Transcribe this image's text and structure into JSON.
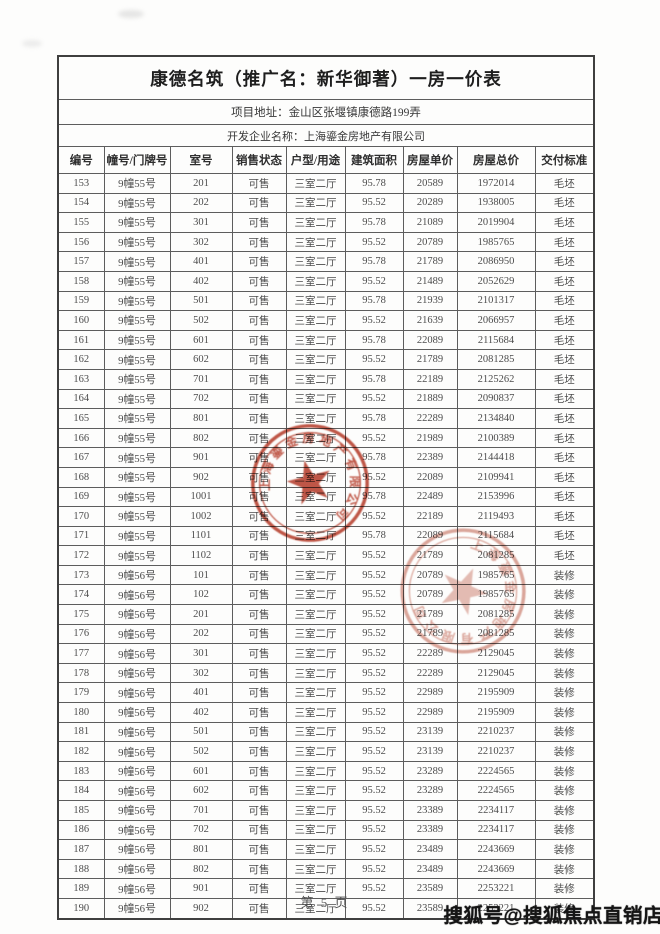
{
  "page": {
    "title": "康德名筑（推广名：新华御著）一房一价表",
    "address_line": "项目地址：金山区张堰镇康德路199弄",
    "developer_line": "开发企业名称：上海鎏金房地产有限公司",
    "page_footer": "第 5 页",
    "watermark": "搜狐号@搜狐焦点直销店"
  },
  "table": {
    "headers": [
      "编号",
      "幢号/门牌号",
      "室号",
      "销售状态",
      "户型/用途",
      "建筑面积",
      "房屋单价",
      "房屋总价",
      "交付标准"
    ],
    "rows": [
      [
        "153",
        "9幢55号",
        "201",
        "可售",
        "三室二厅",
        "95.78",
        "20589",
        "1972014",
        "毛坯"
      ],
      [
        "154",
        "9幢55号",
        "202",
        "可售",
        "三室二厅",
        "95.52",
        "20289",
        "1938005",
        "毛坯"
      ],
      [
        "155",
        "9幢55号",
        "301",
        "可售",
        "三室二厅",
        "95.78",
        "21089",
        "2019904",
        "毛坯"
      ],
      [
        "156",
        "9幢55号",
        "302",
        "可售",
        "三室二厅",
        "95.52",
        "20789",
        "1985765",
        "毛坯"
      ],
      [
        "157",
        "9幢55号",
        "401",
        "可售",
        "三室二厅",
        "95.78",
        "21789",
        "2086950",
        "毛坯"
      ],
      [
        "158",
        "9幢55号",
        "402",
        "可售",
        "三室二厅",
        "95.52",
        "21489",
        "2052629",
        "毛坯"
      ],
      [
        "159",
        "9幢55号",
        "501",
        "可售",
        "三室二厅",
        "95.78",
        "21939",
        "2101317",
        "毛坯"
      ],
      [
        "160",
        "9幢55号",
        "502",
        "可售",
        "三室二厅",
        "95.52",
        "21639",
        "2066957",
        "毛坯"
      ],
      [
        "161",
        "9幢55号",
        "601",
        "可售",
        "三室二厅",
        "95.78",
        "22089",
        "2115684",
        "毛坯"
      ],
      [
        "162",
        "9幢55号",
        "602",
        "可售",
        "三室二厅",
        "95.52",
        "21789",
        "2081285",
        "毛坯"
      ],
      [
        "163",
        "9幢55号",
        "701",
        "可售",
        "三室二厅",
        "95.78",
        "22189",
        "2125262",
        "毛坯"
      ],
      [
        "164",
        "9幢55号",
        "702",
        "可售",
        "三室二厅",
        "95.52",
        "21889",
        "2090837",
        "毛坯"
      ],
      [
        "165",
        "9幢55号",
        "801",
        "可售",
        "三室二厅",
        "95.78",
        "22289",
        "2134840",
        "毛坯"
      ],
      [
        "166",
        "9幢55号",
        "802",
        "可售",
        "三室二厅",
        "95.52",
        "21989",
        "2100389",
        "毛坯"
      ],
      [
        "167",
        "9幢55号",
        "901",
        "可售",
        "三室二厅",
        "95.78",
        "22389",
        "2144418",
        "毛坯"
      ],
      [
        "168",
        "9幢55号",
        "902",
        "可售",
        "三室二厅",
        "95.52",
        "22089",
        "2109941",
        "毛坯"
      ],
      [
        "169",
        "9幢55号",
        "1001",
        "可售",
        "三室二厅",
        "95.78",
        "22489",
        "2153996",
        "毛坯"
      ],
      [
        "170",
        "9幢55号",
        "1002",
        "可售",
        "三室二厅",
        "95.52",
        "22189",
        "2119493",
        "毛坯"
      ],
      [
        "171",
        "9幢55号",
        "1101",
        "可售",
        "三室二厅",
        "95.78",
        "22089",
        "2115684",
        "毛坯"
      ],
      [
        "172",
        "9幢55号",
        "1102",
        "可售",
        "三室二厅",
        "95.52",
        "21789",
        "2081285",
        "毛坯"
      ],
      [
        "173",
        "9幢56号",
        "101",
        "可售",
        "三室二厅",
        "95.52",
        "20789",
        "1985765",
        "装修"
      ],
      [
        "174",
        "9幢56号",
        "102",
        "可售",
        "三室二厅",
        "95.52",
        "20789",
        "1985765",
        "装修"
      ],
      [
        "175",
        "9幢56号",
        "201",
        "可售",
        "三室二厅",
        "95.52",
        "21789",
        "2081285",
        "装修"
      ],
      [
        "176",
        "9幢56号",
        "202",
        "可售",
        "三室二厅",
        "95.52",
        "21789",
        "2081285",
        "装修"
      ],
      [
        "177",
        "9幢56号",
        "301",
        "可售",
        "三室二厅",
        "95.52",
        "22289",
        "2129045",
        "装修"
      ],
      [
        "178",
        "9幢56号",
        "302",
        "可售",
        "三室二厅",
        "95.52",
        "22289",
        "2129045",
        "装修"
      ],
      [
        "179",
        "9幢56号",
        "401",
        "可售",
        "三室二厅",
        "95.52",
        "22989",
        "2195909",
        "装修"
      ],
      [
        "180",
        "9幢56号",
        "402",
        "可售",
        "三室二厅",
        "95.52",
        "22989",
        "2195909",
        "装修"
      ],
      [
        "181",
        "9幢56号",
        "501",
        "可售",
        "三室二厅",
        "95.52",
        "23139",
        "2210237",
        "装修"
      ],
      [
        "182",
        "9幢56号",
        "502",
        "可售",
        "三室二厅",
        "95.52",
        "23139",
        "2210237",
        "装修"
      ],
      [
        "183",
        "9幢56号",
        "601",
        "可售",
        "三室二厅",
        "95.52",
        "23289",
        "2224565",
        "装修"
      ],
      [
        "184",
        "9幢56号",
        "602",
        "可售",
        "三室二厅",
        "95.52",
        "23289",
        "2224565",
        "装修"
      ],
      [
        "185",
        "9幢56号",
        "701",
        "可售",
        "三室二厅",
        "95.52",
        "23389",
        "2234117",
        "装修"
      ],
      [
        "186",
        "9幢56号",
        "702",
        "可售",
        "三室二厅",
        "95.52",
        "23389",
        "2234117",
        "装修"
      ],
      [
        "187",
        "9幢56号",
        "801",
        "可售",
        "三室二厅",
        "95.52",
        "23489",
        "2243669",
        "装修"
      ],
      [
        "188",
        "9幢56号",
        "802",
        "可售",
        "三室二厅",
        "95.52",
        "23489",
        "2243669",
        "装修"
      ],
      [
        "189",
        "9幢56号",
        "901",
        "可售",
        "三室二厅",
        "95.52",
        "23589",
        "2253221",
        "装修"
      ],
      [
        "190",
        "9幢56号",
        "902",
        "可售",
        "三室二厅",
        "95.52",
        "23589",
        "2253221",
        "装修"
      ]
    ]
  },
  "stamps": [
    {
      "ring_text": "上海鎏金房地产有限公司",
      "color": "#b8402e"
    },
    {
      "ring_text": "上海鎏金房地产有限公司",
      "color": "#bc5540"
    }
  ],
  "colors": {
    "stamp_red": "#b8402e",
    "border_gray": "#5d5d5d",
    "text_gray": "#4c4c4c"
  }
}
